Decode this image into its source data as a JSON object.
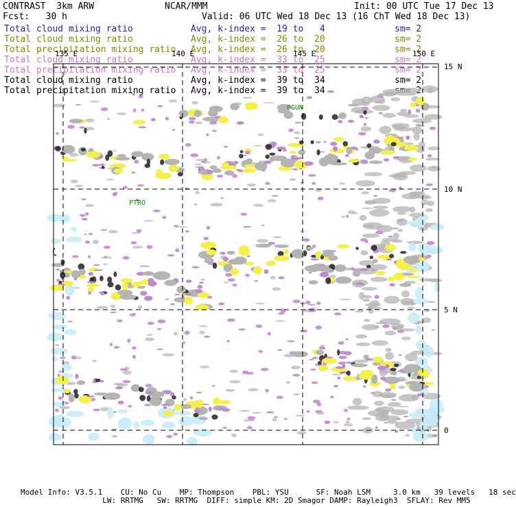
{
  "header": {
    "experiment": "CONTRAST  3km ARW",
    "org": "NCAR/MMM",
    "init": "Init: 00 UTC Tue 17 Dec 13",
    "fcst": "Fcst:   30 h",
    "valid": "Valid: 06 UTC Wed 18 Dec 13 (16 ChT Wed 18 Dec 13)"
  },
  "legend": [
    {
      "field": "Total cloud mixing ratio",
      "avg": "Avg, k-index =  19 to   4",
      "sm": "sm= 2",
      "color": "#2222cc"
    },
    {
      "field": "Total cloud mixing ratio",
      "avg": "Avg, k-index =  26 to  20",
      "sm": "sm= 2",
      "color": "#888800"
    },
    {
      "field": "Total precipitation mixing ratio",
      "avg": "Avg, k-index =  26 to  20",
      "sm": "sm= 2",
      "color": "#888800"
    },
    {
      "field": "Total cloud mixing ratio",
      "avg": "Avg, k-index =  33 to  25",
      "sm": "sm= 2",
      "color": "#cc77cc"
    },
    {
      "field": "Total precipitation mixing ratio",
      "avg": "Avg, k-index =  33 to  25",
      "sm": "sm= 2",
      "color": "#cc77cc"
    },
    {
      "field": "Total cloud mixing ratio",
      "avg": "Avg, k-index =  39 to  34",
      "sm": "sm= 2",
      "color": "#000000"
    },
    {
      "field": "Total precipitation mixing ratio",
      "avg": "Avg, k-index =  39 to  34",
      "sm": "sm= 2",
      "color": "#000000"
    }
  ],
  "map": {
    "lon_labels": [
      "135 E",
      "140 E",
      "145 E",
      "150 E"
    ],
    "lat_labels": [
      "15 N",
      "10 N",
      "5 N",
      "0"
    ],
    "stations": [
      "PGUM",
      "PTRO"
    ],
    "colors": {
      "cloud_low": "#c6ecf7",
      "cloud_mid": "#f5f046",
      "cloud_high": "#c08ad0",
      "cloud_deep": "#b4b4b4",
      "precip_core": "#222222",
      "coast": "#000000",
      "station": "#118811"
    }
  },
  "footer": {
    "line1": "Model Info: V3.5.1    CU: No Cu    MP: Thompson    PBL: YSU      SF: Noah LSM     3.0 km   39 levels   18 sec",
    "line2": "                  LW: RRTMG   SW: RRTMG  DIFF: simple KM: 2D Smagor DAMP: Rayleigh3  SFLAY: Rev MM5"
  }
}
